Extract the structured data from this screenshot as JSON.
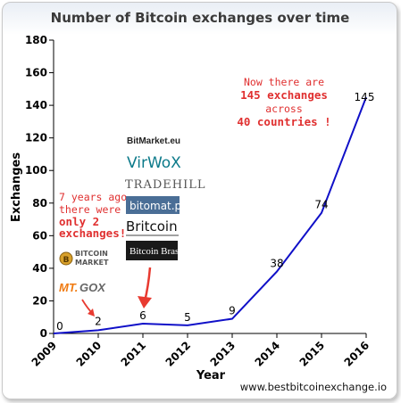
{
  "chart_data": {
    "type": "line",
    "title": "Number of Bitcoin exchanges over time",
    "xlabel": "Year",
    "ylabel": "Exchanges",
    "x": [
      "2009",
      "2010",
      "2011",
      "2012",
      "2013",
      "2014",
      "2015",
      "2016"
    ],
    "series": [
      {
        "values": [
          0,
          2,
          6,
          5,
          9,
          38,
          74,
          145
        ],
        "color": "#1010c8"
      }
    ],
    "ylim": [
      0,
      180
    ],
    "yticks": [
      0,
      20,
      40,
      60,
      80,
      100,
      120,
      140,
      160,
      180
    ],
    "grid": false,
    "annotations": {
      "top_right": {
        "line1": "Now there are",
        "line2": "145 exchanges",
        "line3": "across",
        "line4": "40 countries !"
      },
      "left": {
        "line1": "7 years ago",
        "line2": "there were",
        "line3": "only 2",
        "line4": "exchanges!"
      }
    },
    "logos": {
      "bitmarket": "BitMarket.eu",
      "virwox": "VirWoX",
      "tradehill": "TRADEHILL",
      "bitomat": "bitomat.pl",
      "britcoin": "Britcoin",
      "bitcoin_brasil": "Bitcoin Brasil",
      "bitcoin_market_1": "BITCOIN",
      "bitcoin_market_2": "MARKET",
      "mtgox_1": "MT.",
      "mtgox_2": "GOX"
    },
    "source": "www.bestbitcoinexchange.io"
  }
}
